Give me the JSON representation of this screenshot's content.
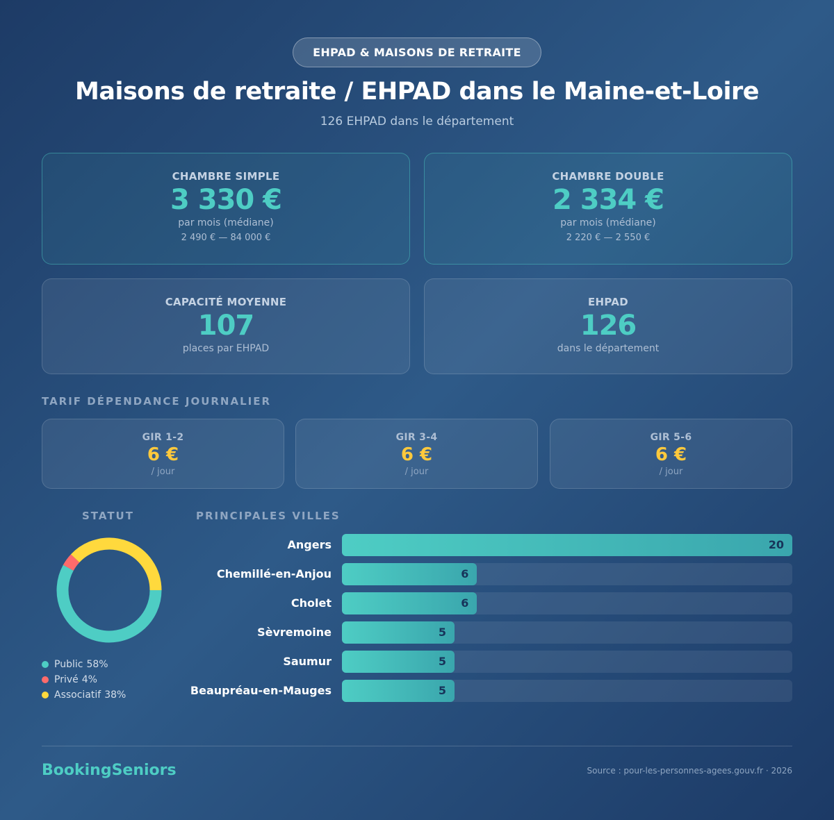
{
  "header": {
    "badge": "EHPAD & MAISONS DE RETRAITE",
    "title": "Maisons de retraite / EHPAD dans le Maine-et-Loire",
    "subtitle": "126 EHPAD dans le département"
  },
  "price_cards": [
    {
      "label": "CHAMBRE SIMPLE",
      "value": "3 330 €",
      "unit": "par mois (médiane)",
      "range": "2 490 € — 84 000 €"
    },
    {
      "label": "CHAMBRE DOUBLE",
      "value": "2 334 €",
      "unit": "par mois (médiane)",
      "range": "2 220 € — 2 550 €"
    }
  ],
  "stat_cards": [
    {
      "label": "CAPACITÉ MOYENNE",
      "value": "107",
      "unit": "places par EHPAD"
    },
    {
      "label": "EHPAD",
      "value": "126",
      "unit": "dans le département"
    }
  ],
  "tarif": {
    "title": "TARIF DÉPENDANCE JOURNALIER",
    "cards": [
      {
        "label": "GIR 1-2",
        "value": "6 €",
        "unit": "/ jour"
      },
      {
        "label": "GIR 3-4",
        "value": "6 €",
        "unit": "/ jour"
      },
      {
        "label": "GIR 5-6",
        "value": "6 €",
        "unit": "/ jour"
      }
    ]
  },
  "chart_data": [
    {
      "type": "donut",
      "title": "STATUT",
      "categories": [
        "Public",
        "Privé",
        "Associatif"
      ],
      "values": [
        58,
        4,
        38
      ],
      "value_labels": [
        "58%",
        "4%",
        "38%"
      ],
      "colors": [
        "#4ecdc4",
        "#ff6b6b",
        "#ffd93d"
      ]
    },
    {
      "type": "bar",
      "title": "PRINCIPALES VILLES",
      "categories": [
        "Angers",
        "Chemillé-en-Anjou",
        "Cholet",
        "Sèvremoine",
        "Saumur",
        "Beaupréau-en-Mauges"
      ],
      "values": [
        20,
        6,
        6,
        5,
        5,
        5
      ],
      "color": "#4ecdc4"
    }
  ],
  "footer": {
    "brand": "BookingSeniors",
    "source": "Source : pour-les-personnes-agees.gouv.fr · 2026"
  }
}
